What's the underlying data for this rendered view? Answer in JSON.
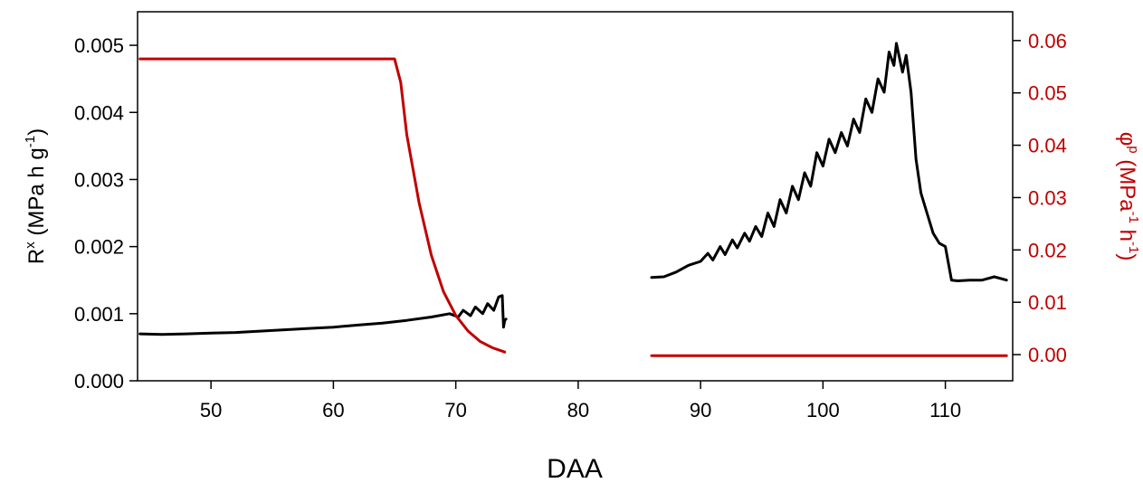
{
  "chart_data": {
    "type": "line",
    "xlabel": "DAA",
    "ylabel_left": {
      "symbol": "R",
      "sup1": "x",
      "mid": " (MPa h g",
      "sup2": "-1",
      "end": ")"
    },
    "ylabel_right": {
      "symbol": "φ",
      "sup1": "p",
      "mid1": " (MPa",
      "sup2": "-1",
      "mid2": " h",
      "sup3": "-1",
      "end": ")"
    },
    "xlim": [
      44,
      115.5
    ],
    "ylim_left": [
      0,
      0.0055
    ],
    "ylim_right": [
      -0.005,
      0.0655
    ],
    "x_ticks": [
      50,
      60,
      70,
      80,
      90,
      100,
      110
    ],
    "x_tick_labels": [
      "50",
      "60",
      "70",
      "80",
      "90",
      "100",
      "110"
    ],
    "y_left_ticks": [
      0,
      0.001,
      0.002,
      0.003,
      0.004,
      0.005
    ],
    "y_left_tick_labels": [
      "0.000",
      "0.001",
      "0.002",
      "0.003",
      "0.004",
      "0.005"
    ],
    "y_right_ticks": [
      0,
      0.01,
      0.02,
      0.03,
      0.04,
      0.05,
      0.06
    ],
    "y_right_tick_labels": [
      "0.00",
      "0.01",
      "0.02",
      "0.03",
      "0.04",
      "0.05",
      "0.06"
    ],
    "grid": false,
    "legend": "none",
    "series": [
      {
        "axis": "left",
        "color": "#000000",
        "segments": [
          [
            [
              44.2,
              0.0007
            ],
            [
              46,
              0.00069
            ],
            [
              48,
              0.0007
            ],
            [
              50,
              0.00071
            ],
            [
              52,
              0.00072
            ],
            [
              54,
              0.00074
            ],
            [
              56,
              0.00076
            ],
            [
              58,
              0.00078
            ],
            [
              60,
              0.0008
            ],
            [
              62,
              0.00083
            ],
            [
              64,
              0.00086
            ],
            [
              66,
              0.0009
            ],
            [
              68,
              0.00095
            ],
            [
              69.5,
              0.001
            ],
            [
              70.2,
              0.00095
            ],
            [
              70.6,
              0.00105
            ],
            [
              71.2,
              0.00097
            ],
            [
              71.6,
              0.0011
            ],
            [
              72.2,
              0.001
            ],
            [
              72.6,
              0.00115
            ],
            [
              73.1,
              0.00105
            ],
            [
              73.5,
              0.00125
            ],
            [
              73.8,
              0.00127
            ],
            [
              73.9,
              0.0008
            ],
            [
              74.0,
              0.0009
            ],
            [
              74.1,
              0.00092
            ]
          ],
          [
            [
              86,
              0.00154
            ],
            [
              87,
              0.00155
            ],
            [
              88,
              0.00162
            ],
            [
              89,
              0.00172
            ],
            [
              90,
              0.00178
            ],
            [
              90.6,
              0.0019
            ],
            [
              91,
              0.0018
            ],
            [
              91.6,
              0.002
            ],
            [
              92,
              0.00188
            ],
            [
              92.6,
              0.0021
            ],
            [
              93,
              0.00198
            ],
            [
              93.6,
              0.0022
            ],
            [
              94,
              0.00208
            ],
            [
              94.5,
              0.0023
            ],
            [
              95,
              0.00215
            ],
            [
              95.5,
              0.0025
            ],
            [
              96,
              0.0023
            ],
            [
              96.5,
              0.0027
            ],
            [
              97,
              0.0025
            ],
            [
              97.5,
              0.0029
            ],
            [
              98,
              0.0027
            ],
            [
              98.5,
              0.0031
            ],
            [
              99,
              0.0029
            ],
            [
              99.5,
              0.0034
            ],
            [
              100,
              0.0032
            ],
            [
              100.5,
              0.0036
            ],
            [
              101,
              0.0034
            ],
            [
              101.5,
              0.0037
            ],
            [
              102,
              0.0035
            ],
            [
              102.5,
              0.0039
            ],
            [
              103,
              0.0037
            ],
            [
              103.5,
              0.0042
            ],
            [
              104,
              0.004
            ],
            [
              104.5,
              0.0045
            ],
            [
              105,
              0.0043
            ],
            [
              105.4,
              0.0049
            ],
            [
              105.8,
              0.0047
            ],
            [
              106.0,
              0.00503
            ],
            [
              106.5,
              0.0046
            ],
            [
              106.8,
              0.00485
            ],
            [
              107.2,
              0.0043
            ],
            [
              107.6,
              0.0033
            ],
            [
              108,
              0.0028
            ],
            [
              108.5,
              0.0025
            ],
            [
              109,
              0.0022
            ],
            [
              109.5,
              0.00205
            ],
            [
              110,
              0.002
            ],
            [
              110.5,
              0.0015
            ],
            [
              111,
              0.00149
            ],
            [
              112,
              0.0015
            ],
            [
              113,
              0.0015
            ],
            [
              114,
              0.00155
            ],
            [
              115,
              0.0015
            ]
          ]
        ]
      },
      {
        "axis": "right",
        "color": "#c00000",
        "segments": [
          [
            [
              44.2,
              0.0565
            ],
            [
              65,
              0.0565
            ],
            [
              65.5,
              0.052
            ],
            [
              66,
              0.042
            ],
            [
              67,
              0.029
            ],
            [
              68,
              0.019
            ],
            [
              69,
              0.012
            ],
            [
              70,
              0.0075
            ],
            [
              71,
              0.0045
            ],
            [
              72,
              0.0025
            ],
            [
              73,
              0.0013
            ],
            [
              74,
              0.0005
            ]
          ],
          [
            [
              86,
              -0.0002
            ],
            [
              115,
              -0.0002
            ]
          ]
        ]
      }
    ]
  }
}
